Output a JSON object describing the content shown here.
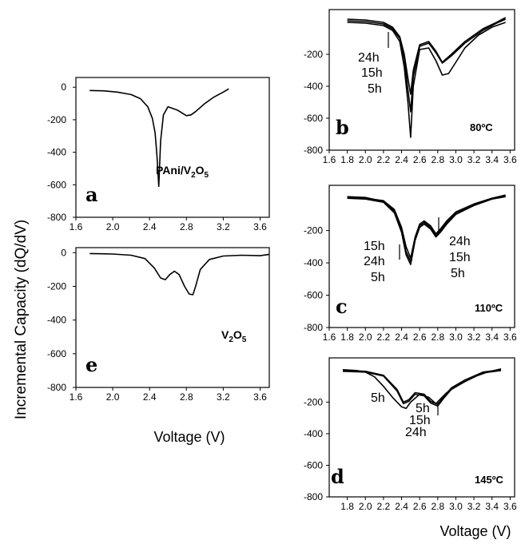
{
  "figure": {
    "ylabel": "Incremental Capacity (dQ/dV)",
    "xlabel": "Voltage (V)"
  },
  "chart_data": [
    {
      "id": "a",
      "type": "line",
      "panel_label": "a",
      "annotation_main": "PAni/V",
      "annotation_sub1": "2",
      "annotation_mid": "O",
      "annotation_sub2": "5",
      "xlim": [
        1.6,
        3.7
      ],
      "ylim": [
        -800,
        60
      ],
      "xticks": [
        "1.6",
        "2.0",
        "2.4",
        "2.8",
        "3.2",
        "3.6"
      ],
      "xtick_values": [
        1.6,
        2.0,
        2.4,
        2.8,
        3.2,
        3.6
      ],
      "yticks": [
        "0",
        "-200",
        "-400",
        "-600",
        "-800"
      ],
      "ytick_values": [
        0,
        -200,
        -400,
        -600,
        -800
      ],
      "series": [
        {
          "x": [
            1.75,
            1.9,
            2.05,
            2.2,
            2.3,
            2.38,
            2.43,
            2.46,
            2.48,
            2.5,
            2.52,
            2.55,
            2.6,
            2.7,
            2.8,
            2.85,
            2.9,
            3.0,
            3.1,
            3.2,
            3.26
          ],
          "y": [
            -20,
            -22,
            -30,
            -45,
            -70,
            -120,
            -190,
            -280,
            -420,
            -610,
            -330,
            -170,
            -120,
            -140,
            -175,
            -170,
            -150,
            -100,
            -60,
            -30,
            -10
          ]
        }
      ]
    },
    {
      "id": "e",
      "type": "line",
      "panel_label": "e",
      "annotation_main": "V",
      "annotation_sub1": "2",
      "annotation_mid": "O",
      "annotation_sub2": "5",
      "xlim": [
        1.6,
        3.7
      ],
      "ylim": [
        -800,
        30
      ],
      "xticks": [
        "1.6",
        "2.0",
        "2.4",
        "2.8",
        "3.2",
        "3.6"
      ],
      "xtick_values": [
        1.6,
        2.0,
        2.4,
        2.8,
        3.2,
        3.6
      ],
      "yticks": [
        "0",
        "-200",
        "-400",
        "-600",
        "-800"
      ],
      "ytick_values": [
        0,
        -200,
        -400,
        -600,
        -800
      ],
      "series": [
        {
          "x": [
            1.75,
            2.0,
            2.2,
            2.35,
            2.45,
            2.52,
            2.57,
            2.62,
            2.67,
            2.72,
            2.78,
            2.83,
            2.87,
            2.9,
            2.95,
            3.05,
            3.2,
            3.4,
            3.6,
            3.7
          ],
          "y": [
            -5,
            -8,
            -15,
            -35,
            -90,
            -150,
            -160,
            -130,
            -110,
            -130,
            -200,
            -245,
            -250,
            -200,
            -100,
            -40,
            -20,
            -15,
            -18,
            -10
          ]
        }
      ]
    },
    {
      "id": "b",
      "type": "line",
      "panel_label": "b",
      "temperature": "80ºC",
      "xlim": [
        1.6,
        3.65
      ],
      "ylim": [
        -800,
        80
      ],
      "xticks": [
        "1.6",
        "1.8",
        "2.0",
        "2.2",
        "2.4",
        "2.6",
        "2.8",
        "3.0",
        "3.2",
        "3.4",
        "3.6"
      ],
      "xtick_values": [
        1.6,
        1.8,
        2.0,
        2.2,
        2.4,
        2.6,
        2.8,
        3.0,
        3.2,
        3.4,
        3.6
      ],
      "yticks": [
        "-200",
        "-400",
        "-600",
        "-800"
      ],
      "ytick_values": [
        -200,
        -400,
        -600,
        -800
      ],
      "legend_labels": [
        "24h",
        "15h",
        "5h"
      ],
      "series": [
        {
          "name": "24h",
          "x": [
            1.8,
            2.0,
            2.2,
            2.3,
            2.38,
            2.43,
            2.47,
            2.5,
            2.53,
            2.6,
            2.7,
            2.78,
            2.85,
            2.95,
            3.1,
            3.3,
            3.45,
            3.55
          ],
          "y": [
            20,
            15,
            0,
            -30,
            -90,
            -200,
            -350,
            -450,
            -300,
            -140,
            -120,
            -180,
            -250,
            -200,
            -120,
            -40,
            0,
            30
          ]
        },
        {
          "name": "15h",
          "x": [
            1.8,
            2.0,
            2.2,
            2.3,
            2.38,
            2.43,
            2.47,
            2.5,
            2.53,
            2.6,
            2.7,
            2.78,
            2.85,
            2.95,
            3.1,
            3.3,
            3.45,
            3.55
          ],
          "y": [
            10,
            5,
            -10,
            -40,
            -100,
            -230,
            -420,
            -560,
            -340,
            -150,
            -130,
            -190,
            -255,
            -210,
            -130,
            -50,
            -5,
            20
          ]
        },
        {
          "name": "5h",
          "x": [
            1.8,
            2.0,
            2.2,
            2.3,
            2.38,
            2.43,
            2.47,
            2.5,
            2.53,
            2.6,
            2.7,
            2.78,
            2.85,
            2.92,
            3.0,
            3.1,
            3.25,
            3.4,
            3.55
          ],
          "y": [
            0,
            -5,
            -20,
            -50,
            -120,
            -280,
            -500,
            -720,
            -400,
            -170,
            -160,
            -240,
            -330,
            -320,
            -250,
            -160,
            -80,
            -30,
            0
          ]
        }
      ]
    },
    {
      "id": "c",
      "type": "line",
      "panel_label": "c",
      "temperature": "110ºC",
      "xlim": [
        1.6,
        3.65
      ],
      "ylim": [
        -800,
        80
      ],
      "xticks": [
        "1.6",
        "1.8",
        "2.0",
        "2.2",
        "2.4",
        "2.6",
        "2.8",
        "3.0",
        "3.2",
        "3.4",
        "3.6"
      ],
      "xtick_values": [
        1.6,
        1.8,
        2.0,
        2.2,
        2.4,
        2.6,
        2.8,
        3.0,
        3.2,
        3.4,
        3.6
      ],
      "yticks": [
        "-200",
        "-400",
        "-600",
        "-800"
      ],
      "ytick_values": [
        -200,
        -400,
        -600,
        -800
      ],
      "legend_left": [
        "15h",
        "24h",
        "5h"
      ],
      "legend_right": [
        "24h",
        "15h",
        "5h"
      ],
      "series": [
        {
          "name": "15h",
          "x": [
            1.8,
            2.0,
            2.2,
            2.32,
            2.4,
            2.45,
            2.5,
            2.55,
            2.6,
            2.65,
            2.72,
            2.78,
            2.83,
            2.9,
            3.0,
            3.2,
            3.4,
            3.55
          ],
          "y": [
            10,
            5,
            -20,
            -80,
            -200,
            -330,
            -390,
            -250,
            -170,
            -150,
            -180,
            -230,
            -200,
            -150,
            -90,
            -40,
            0,
            20
          ]
        },
        {
          "name": "24h",
          "x": [
            1.8,
            2.0,
            2.2,
            2.32,
            2.4,
            2.45,
            2.5,
            2.55,
            2.6,
            2.65,
            2.72,
            2.78,
            2.83,
            2.9,
            3.0,
            3.2,
            3.4,
            3.55
          ],
          "y": [
            0,
            -5,
            -25,
            -90,
            -210,
            -350,
            -410,
            -260,
            -180,
            -160,
            -190,
            -240,
            -210,
            -160,
            -100,
            -45,
            -5,
            10
          ]
        },
        {
          "name": "5h",
          "x": [
            1.8,
            2.0,
            2.2,
            2.32,
            2.4,
            2.45,
            2.5,
            2.55,
            2.6,
            2.65,
            2.72,
            2.78,
            2.83,
            2.9,
            3.0,
            3.2,
            3.4,
            3.55
          ],
          "y": [
            5,
            0,
            -15,
            -70,
            -180,
            -300,
            -370,
            -240,
            -160,
            -140,
            -170,
            -220,
            -190,
            -140,
            -85,
            -35,
            0,
            15
          ]
        }
      ]
    },
    {
      "id": "d",
      "type": "line",
      "panel_label": "d",
      "temperature": "145ºC",
      "xlim": [
        1.6,
        3.65
      ],
      "ylim": [
        -800,
        80
      ],
      "xticks": [
        "1.8",
        "2.0",
        "2.2",
        "2.4",
        "2.6",
        "2.8",
        "3.0",
        "3.2",
        "3.4",
        "3.6"
      ],
      "xtick_values": [
        1.8,
        2.0,
        2.2,
        2.4,
        2.6,
        2.8,
        3.0,
        3.2,
        3.4,
        3.6
      ],
      "yticks": [
        "-200",
        "-400",
        "-600",
        "-800"
      ],
      "ytick_values": [
        -200,
        -400,
        -600,
        -800
      ],
      "legend_left": [
        "5h"
      ],
      "legend_right": [
        "5h",
        "15h",
        "24h"
      ],
      "series": [
        {
          "name": "5h",
          "x": [
            1.75,
            1.9,
            2.0,
            2.1,
            2.2,
            2.3,
            2.4,
            2.45,
            2.5,
            2.6,
            2.7,
            2.78,
            2.83,
            2.9,
            3.0,
            3.1,
            3.2,
            3.35,
            3.5
          ],
          "y": [
            5,
            0,
            -10,
            -40,
            -100,
            -170,
            -230,
            -240,
            -200,
            -150,
            -170,
            -210,
            -180,
            -140,
            -100,
            -70,
            -40,
            -10,
            10
          ]
        },
        {
          "name": "15h",
          "x": [
            1.75,
            2.0,
            2.2,
            2.35,
            2.42,
            2.48,
            2.55,
            2.65,
            2.72,
            2.8,
            2.86,
            2.95,
            3.1,
            3.3,
            3.5
          ],
          "y": [
            0,
            -5,
            -30,
            -120,
            -200,
            -185,
            -140,
            -150,
            -195,
            -215,
            -170,
            -110,
            -60,
            -10,
            5
          ]
        },
        {
          "name": "24h",
          "x": [
            1.75,
            2.0,
            2.2,
            2.35,
            2.42,
            2.48,
            2.55,
            2.65,
            2.72,
            2.8,
            2.86,
            2.95,
            3.1,
            3.3,
            3.5
          ],
          "y": [
            -5,
            -10,
            -35,
            -130,
            -210,
            -195,
            -150,
            -160,
            -205,
            -225,
            -180,
            -120,
            -70,
            -15,
            0
          ]
        }
      ]
    }
  ]
}
